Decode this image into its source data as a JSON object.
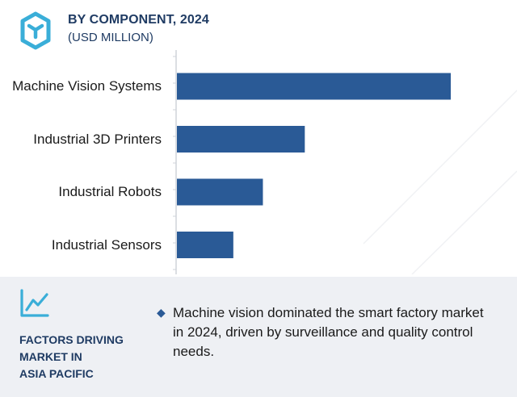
{
  "header": {
    "title": "BY COMPONENT, 2024",
    "subtitle": "(USD MILLION)"
  },
  "chart_data": {
    "type": "bar",
    "orientation": "horizontal",
    "categories": [
      "Machine Vision Systems",
      "Industrial 3D Printers",
      "Industrial Robots",
      "Industrial Sensors"
    ],
    "values": [
      100,
      46.7,
      31.4,
      20.6
    ],
    "title": "BY COMPONENT, 2024",
    "subtitle": "(USD MILLION)",
    "xlabel": "",
    "ylabel": "",
    "xlim": [
      0,
      100
    ],
    "grid": false,
    "legend": "none",
    "bar_color": "#2a5a96"
  },
  "panel": {
    "heading_lines": [
      "FACTORS DRIVING",
      "MARKET IN",
      "ASIA PACIFIC"
    ],
    "bullet": "Machine vision dominated the smart factory market in 2024, driven by surveillance and quality control needs."
  },
  "colors": {
    "accent": "#2a5a96",
    "title": "#1f3b63",
    "panel_bg": "#eef0f4",
    "logo": "#3aaed8"
  },
  "icons": {
    "logo": "cube-logo-icon",
    "trend": "trend-chart-icon",
    "bullet": "diamond-bullet-icon"
  }
}
